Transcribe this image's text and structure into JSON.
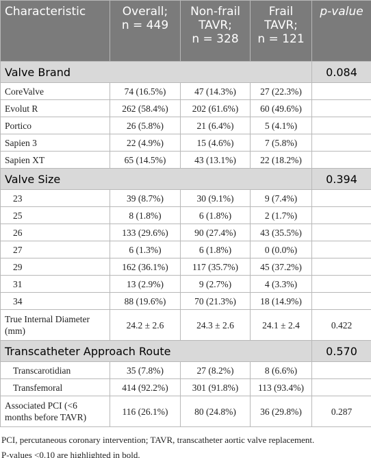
{
  "header": [
    "Characteristic",
    [
      "Overall;",
      "n = 449"
    ],
    [
      "Non-frail",
      "TAVR;",
      "n = 328"
    ],
    [
      "Frail",
      "TAVR;",
      "n = 121"
    ],
    "p-value"
  ],
  "sections": [
    {
      "title": "Valve Brand",
      "p": "0.084",
      "bold": true,
      "rows": [
        {
          "cells": [
            "CoreValve",
            "74 (16.5%)",
            "47 (14.3%)",
            "27 (22.3%)"
          ],
          "indent": false
        },
        {
          "cells": [
            "Evolut R",
            "262 (58.4%)",
            "202 (61.6%)",
            "60 (49.6%)"
          ],
          "indent": false
        },
        {
          "cells": [
            "Portico",
            "26 (5.8%)",
            "21 (6.4%)",
            "5 (4.1%)"
          ],
          "indent": false
        },
        {
          "cells": [
            "Sapien 3",
            "22 (4.9%)",
            "15 (4.6%)",
            "7 (5.8%)"
          ],
          "indent": false
        },
        {
          "cells": [
            "Sapien XT",
            "65 (14.5%)",
            "43 (13.1%)",
            "22 (18.2%)"
          ],
          "indent": false
        }
      ]
    },
    {
      "title": "Valve Size",
      "p": "0.394",
      "bold": false,
      "rows": [
        {
          "cells": [
            "23",
            "39 (8.7%)",
            "30 (9.1%)",
            "9 (7.4%)"
          ],
          "indent": true
        },
        {
          "cells": [
            "25",
            "8 (1.8%)",
            "6 (1.8%)",
            "2 (1.7%)"
          ],
          "indent": true
        },
        {
          "cells": [
            "26",
            "133 (29.6%)",
            "90 (27.4%)",
            "43 (35.5%)"
          ],
          "indent": true
        },
        {
          "cells": [
            "27",
            "6 (1.3%)",
            "6 (1.8%)",
            "0 (0.0%)"
          ],
          "indent": true
        },
        {
          "cells": [
            "29",
            "162 (36.1%)",
            "117 (35.7%)",
            "45 (37.2%)"
          ],
          "indent": true
        },
        {
          "cells": [
            "31",
            "13 (2.9%)",
            "9 (2.7%)",
            "4 (3.3%)"
          ],
          "indent": true
        },
        {
          "cells": [
            "34",
            "88 (19.6%)",
            "70 (21.3%)",
            "18 (14.9%)"
          ],
          "indent": true
        },
        {
          "cells": [
            "True Internal Diameter (mm)",
            "24.2 ± 2.6",
            "24.3 ± 2.6",
            "24.1 ± 2.4"
          ],
          "indent": false,
          "p": "0.422"
        }
      ]
    },
    {
      "title": "Transcatheter Approach Route",
      "p": "0.570",
      "bold": false,
      "rows": [
        {
          "cells": [
            "Transcarotidian",
            "35 (7.8%)",
            "27 (8.2%)",
            "8 (6.6%)"
          ],
          "indent": true
        },
        {
          "cells": [
            "Transfemoral",
            "414 (92.2%)",
            "301 (91.8%)",
            "113 (93.4%)"
          ],
          "indent": true
        },
        {
          "cells": [
            "Associated PCI (<6 months before TAVR)",
            "116 (26.1%)",
            "80 (24.8%)",
            "36 (29.8%)"
          ],
          "indent": false,
          "p": "0.287"
        }
      ]
    }
  ],
  "footnotes": [
    "PCI, percutaneous coronary intervention; TAVR, transcatheter aortic valve replacement.",
    "P-values <0.10 are highlighted in bold."
  ]
}
